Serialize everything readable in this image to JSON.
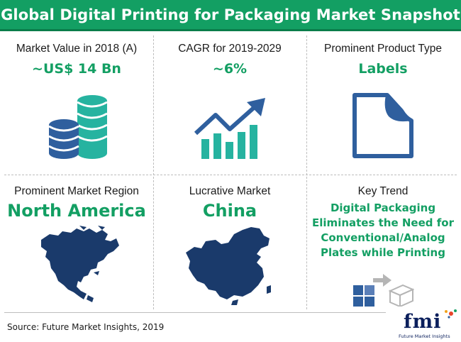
{
  "header": {
    "title": "Global Digital Printing for Packaging Market Snapshot"
  },
  "cells": {
    "market_value": {
      "label": "Market Value in 2018 (A)",
      "value": "~US$ 14 Bn",
      "icon": "coins-stack-icon"
    },
    "cagr": {
      "label": "CAGR for 2019-2029",
      "value": "~6%",
      "icon": "growth-chart-icon"
    },
    "product_type": {
      "label": "Prominent Product Type",
      "value": "Labels",
      "icon": "label-sheet-icon"
    },
    "region": {
      "label": "Prominent Market Region",
      "value": "North America",
      "icon": "north-america-map-icon"
    },
    "lucrative": {
      "label": "Lucrative Market",
      "value": "China",
      "icon": "china-map-icon"
    },
    "key_trend": {
      "label": "Key Trend",
      "lines": [
        "Digital Packaging",
        "Eliminates the Need for",
        "Conventional/Analog",
        "Plates while Printing"
      ],
      "icon": "packaging-boxes-icon"
    }
  },
  "footer": {
    "source": "Source: Future Market Insights, 2019",
    "logo_word": "fmi",
    "logo_sub": "Future Market Insights"
  },
  "colors": {
    "accent": "#139f63",
    "icon_teal": "#26b3a0",
    "icon_blue": "#2f5f9e",
    "map_navy": "#1a3a6b",
    "logo_navy": "#0b1f5c"
  }
}
